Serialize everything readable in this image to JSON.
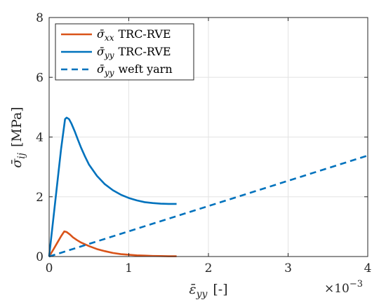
{
  "chart_data": {
    "type": "line",
    "title": "",
    "xlabel": {
      "symbol": "ε̄",
      "subscript": "yy",
      "unit": "[-]"
    },
    "ylabel": {
      "symbol": "σ̄",
      "subscript": "ij",
      "unit": "[MPa]"
    },
    "x_exponent": {
      "base": "×10",
      "power": "−3"
    },
    "xlim": [
      0,
      4
    ],
    "ylim": [
      0,
      8
    ],
    "xticks": [
      0,
      1,
      2,
      3,
      4
    ],
    "yticks": [
      0,
      2,
      4,
      6,
      8
    ],
    "grid": true,
    "legend_position": "top-left",
    "series": [
      {
        "name": "σ̄xx TRC-RVE",
        "legend_symbol": "σ̄",
        "legend_subscript": "xx",
        "legend_suffix": "TRC-RVE",
        "color": "#D95319",
        "style": "solid",
        "x": [
          0,
          0.05,
          0.1,
          0.15,
          0.19,
          0.22,
          0.26,
          0.3,
          0.35,
          0.4,
          0.5,
          0.6,
          0.7,
          0.8,
          0.9,
          1.0,
          1.1,
          1.2,
          1.3,
          1.4,
          1.5,
          1.6
        ],
        "y": [
          0,
          0.22,
          0.45,
          0.68,
          0.84,
          0.82,
          0.74,
          0.64,
          0.55,
          0.47,
          0.35,
          0.25,
          0.18,
          0.12,
          0.08,
          0.06,
          0.04,
          0.03,
          0.02,
          0.015,
          0.01,
          0.01
        ]
      },
      {
        "name": "σ̄yy TRC-RVE",
        "legend_symbol": "σ̄",
        "legend_subscript": "yy",
        "legend_suffix": "TRC-RVE",
        "color": "#0072BD",
        "style": "solid",
        "x": [
          0,
          0.05,
          0.1,
          0.15,
          0.2,
          0.22,
          0.25,
          0.28,
          0.32,
          0.36,
          0.4,
          0.45,
          0.5,
          0.6,
          0.7,
          0.8,
          0.9,
          1.0,
          1.1,
          1.2,
          1.3,
          1.4,
          1.5,
          1.6
        ],
        "y": [
          0,
          1.2,
          2.4,
          3.6,
          4.6,
          4.65,
          4.6,
          4.45,
          4.2,
          3.92,
          3.65,
          3.35,
          3.08,
          2.7,
          2.42,
          2.22,
          2.07,
          1.96,
          1.88,
          1.82,
          1.79,
          1.77,
          1.76,
          1.76
        ]
      },
      {
        "name": "σ̄yy weft yarn",
        "legend_symbol": "σ̄",
        "legend_subscript": "yy",
        "legend_suffix": "weft yarn",
        "color": "#0072BD",
        "style": "dashed",
        "x": [
          0,
          4
        ],
        "y": [
          0,
          3.38
        ]
      }
    ]
  }
}
